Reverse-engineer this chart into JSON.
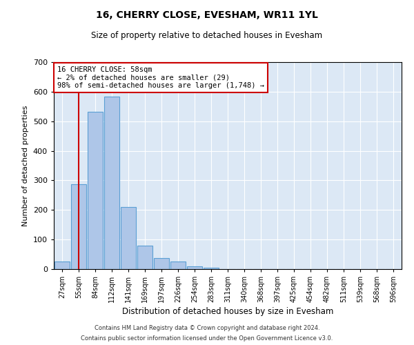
{
  "title": "16, CHERRY CLOSE, EVESHAM, WR11 1YL",
  "subtitle": "Size of property relative to detached houses in Evesham",
  "xlabel": "Distribution of detached houses by size in Evesham",
  "ylabel": "Number of detached properties",
  "bar_labels": [
    "27sqm",
    "55sqm",
    "84sqm",
    "112sqm",
    "141sqm",
    "169sqm",
    "197sqm",
    "226sqm",
    "254sqm",
    "283sqm",
    "311sqm",
    "340sqm",
    "368sqm",
    "397sqm",
    "425sqm",
    "454sqm",
    "482sqm",
    "511sqm",
    "539sqm",
    "568sqm",
    "596sqm"
  ],
  "bar_values": [
    25,
    287,
    533,
    583,
    211,
    80,
    37,
    26,
    10,
    5,
    0,
    0,
    0,
    0,
    0,
    0,
    0,
    0,
    0,
    0,
    0
  ],
  "bar_color": "#aec6e8",
  "bar_edge_color": "#5a9fd4",
  "vline_x": 1,
  "vline_color": "#cc0000",
  "annotation_text": "16 CHERRY CLOSE: 58sqm\n← 2% of detached houses are smaller (29)\n98% of semi-detached houses are larger (1,748) →",
  "annotation_box_color": "#ffffff",
  "annotation_box_edge_color": "#cc0000",
  "ylim": [
    0,
    700
  ],
  "yticks": [
    0,
    100,
    200,
    300,
    400,
    500,
    600,
    700
  ],
  "bg_color": "#dce8f5",
  "footer_line1": "Contains HM Land Registry data © Crown copyright and database right 2024.",
  "footer_line2": "Contains public sector information licensed under the Open Government Licence v3.0."
}
